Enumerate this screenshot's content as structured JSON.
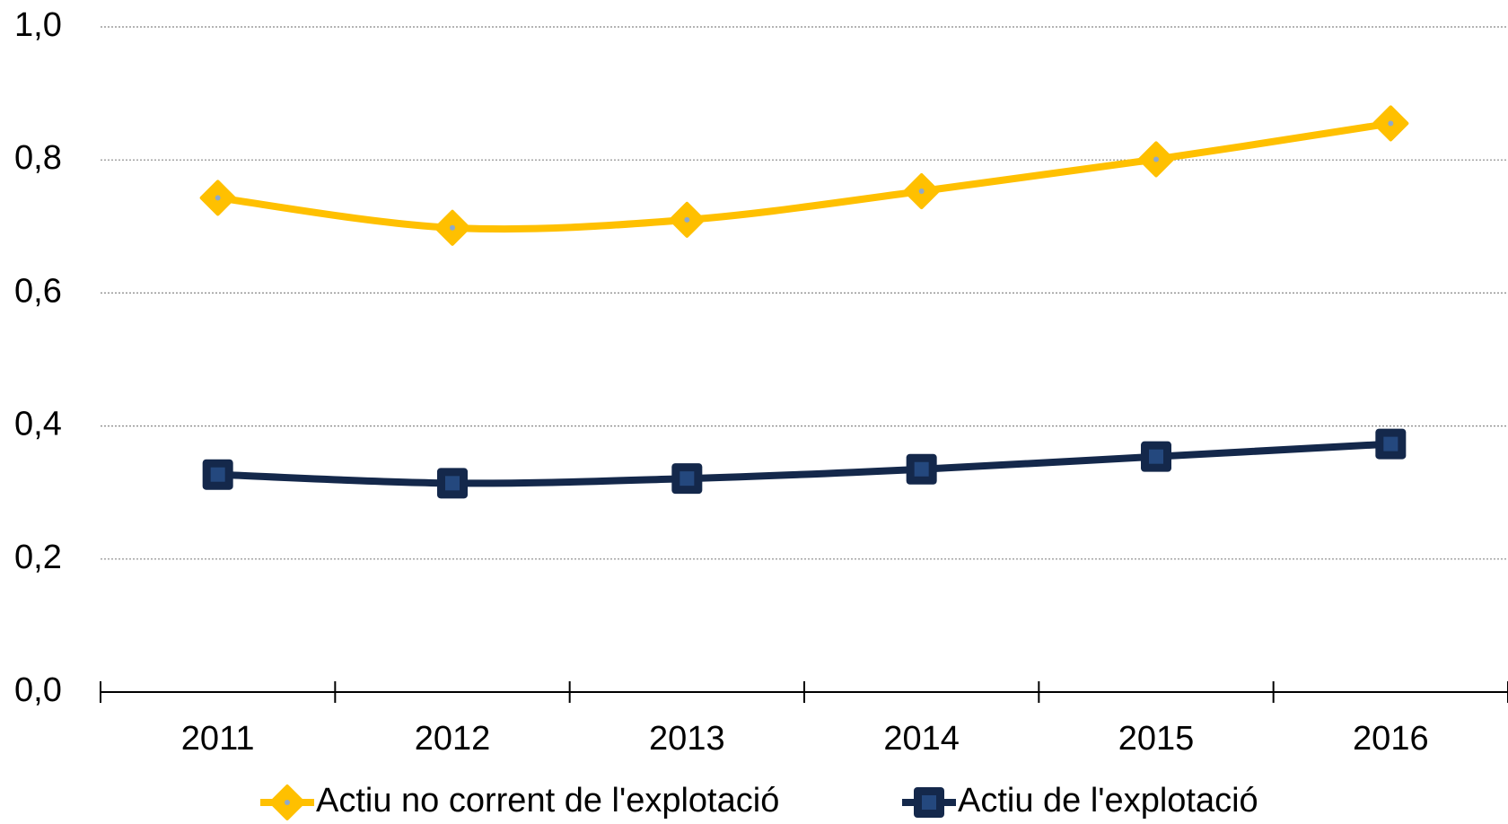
{
  "chart_data": {
    "type": "line",
    "categories": [
      "2011",
      "2012",
      "2013",
      "2014",
      "2015",
      "2016"
    ],
    "series": [
      {
        "name": "Actiu no corrent de l'explotació",
        "color": "#FFC000",
        "marker": "diamond",
        "values": [
          0.743,
          0.698,
          0.71,
          0.753,
          0.801,
          0.855
        ]
      },
      {
        "name": "Actiu de l'explotació",
        "color": "#14284B",
        "marker": "square",
        "values": [
          0.327,
          0.314,
          0.321,
          0.335,
          0.354,
          0.373
        ]
      }
    ],
    "ylim": [
      0,
      1
    ],
    "yticks": [
      {
        "value": 0,
        "label": "0,0"
      },
      {
        "value": 0.2,
        "label": "0,2"
      },
      {
        "value": 0.4,
        "label": "0,4"
      },
      {
        "value": 0.6,
        "label": "0,6"
      },
      {
        "value": 0.8,
        "label": "0,8"
      },
      {
        "value": 1,
        "label": "1,0"
      }
    ],
    "grid": true,
    "legend": "bottom"
  }
}
